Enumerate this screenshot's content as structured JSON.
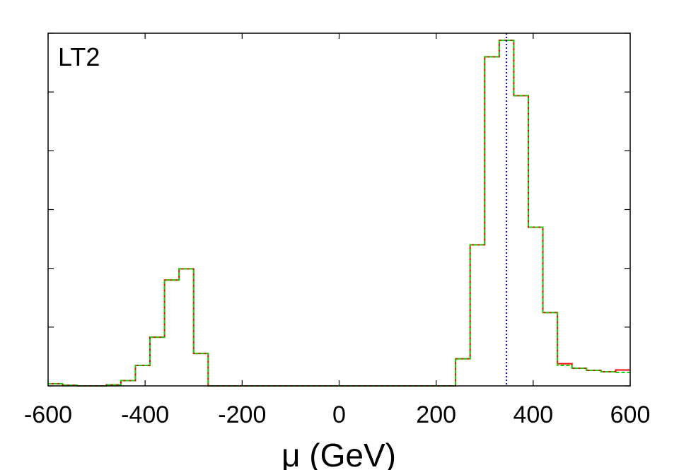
{
  "chart_data": {
    "type": "line",
    "style": "step-histogram",
    "panel_label": "LT2",
    "xlabel": "μ (GeV)",
    "ylabel": "",
    "xlim": [
      -600,
      600
    ],
    "ylim": [
      0,
      1.0
    ],
    "x_ticks": [
      -600,
      -400,
      -200,
      0,
      200,
      400,
      600
    ],
    "y_tick_count": 6,
    "y_tick_labels_shown": false,
    "grid": false,
    "bin_edges": [
      -600,
      -570,
      -540,
      -510,
      -480,
      -450,
      -420,
      -390,
      -360,
      -330,
      -300,
      -270,
      -240,
      -210,
      -180,
      -150,
      -120,
      -90,
      -60,
      -30,
      0,
      30,
      60,
      90,
      120,
      150,
      180,
      210,
      240,
      270,
      300,
      330,
      360,
      390,
      420,
      450,
      480,
      510,
      540,
      570,
      600
    ],
    "series": [
      {
        "color": "#ff0000",
        "dash": "solid",
        "values": [
          0.006,
          0.002,
          0.0,
          0.0,
          0.003,
          0.015,
          0.058,
          0.138,
          0.3,
          0.332,
          0.092,
          0.0,
          0.0,
          0.0,
          0.0,
          0.0,
          0.0,
          0.0,
          0.0,
          0.0,
          0.0,
          0.0,
          0.0,
          0.0,
          0.0,
          0.0,
          0.0,
          0.0,
          0.077,
          0.4,
          0.933,
          0.98,
          0.823,
          0.45,
          0.208,
          0.063,
          0.05,
          0.044,
          0.04,
          0.045
        ]
      },
      {
        "color": "#00dd00",
        "dash": "dashed",
        "values": [
          0.006,
          0.002,
          0.0,
          0.0,
          0.003,
          0.015,
          0.058,
          0.138,
          0.3,
          0.332,
          0.092,
          0.0,
          0.0,
          0.0,
          0.0,
          0.0,
          0.0,
          0.0,
          0.0,
          0.0,
          0.0,
          0.0,
          0.0,
          0.0,
          0.0,
          0.0,
          0.0,
          0.0,
          0.077,
          0.4,
          0.933,
          0.98,
          0.823,
          0.45,
          0.208,
          0.058,
          0.05,
          0.044,
          0.04,
          0.038
        ]
      }
    ],
    "reference_line": {
      "x": 345,
      "color": "#0000cc",
      "dash": "dotted"
    }
  }
}
